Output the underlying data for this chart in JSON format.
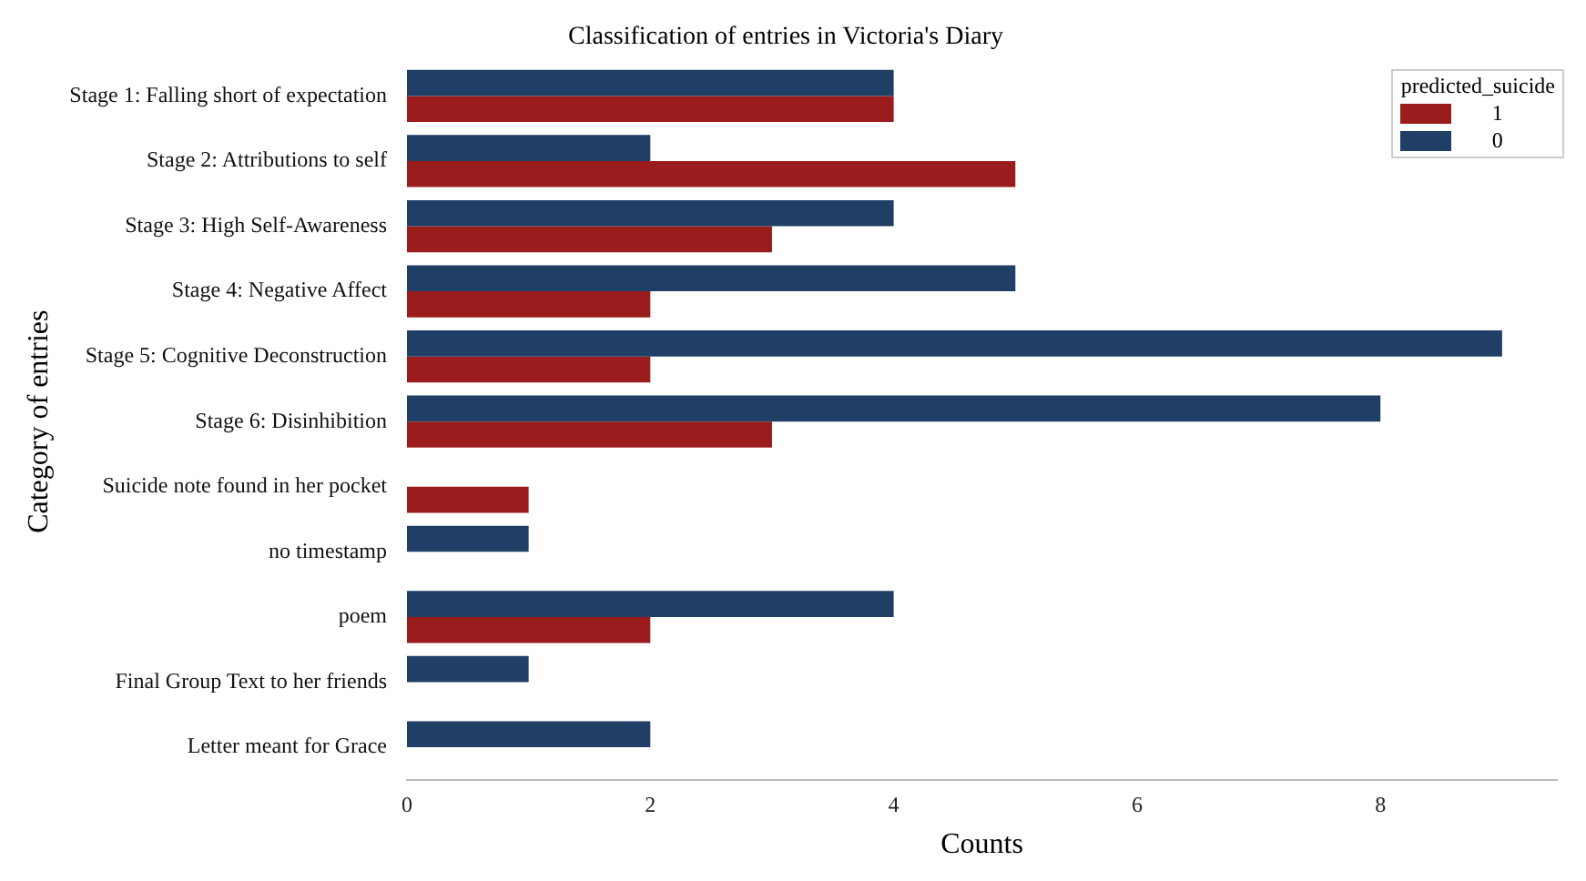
{
  "chart_data": {
    "type": "bar",
    "orientation": "horizontal",
    "title": "Classification of entries in Victoria's Diary",
    "xlabel": "Counts",
    "ylabel": "Category of entries",
    "legend_title": "predicted_suicide",
    "legend": "top right",
    "grid": false,
    "categories": [
      "Stage 1: Falling short of expectation",
      "Stage 2: Attributions to self",
      "Stage 3: High Self-Awareness",
      "Stage 4: Negative Affect",
      "Stage 5: Cognitive Deconstruction",
      "Stage 6: Disinhibition",
      "Suicide note found in her pocket",
      "no timestamp",
      "poem",
      "Final Group Text to her friends",
      "Letter meant for Grace"
    ],
    "series": [
      {
        "name": "1",
        "color": "#9b1c1c",
        "values": [
          4,
          5,
          3,
          2,
          2,
          3,
          1,
          null,
          2,
          null,
          null
        ]
      },
      {
        "name": "0",
        "color": "#1f3f66",
        "values": [
          4,
          2,
          4,
          5,
          9,
          8,
          null,
          1,
          4,
          1,
          2
        ]
      }
    ],
    "xlim": [
      0,
      9.45
    ],
    "xticks": [
      0,
      2,
      4,
      6,
      8
    ]
  }
}
